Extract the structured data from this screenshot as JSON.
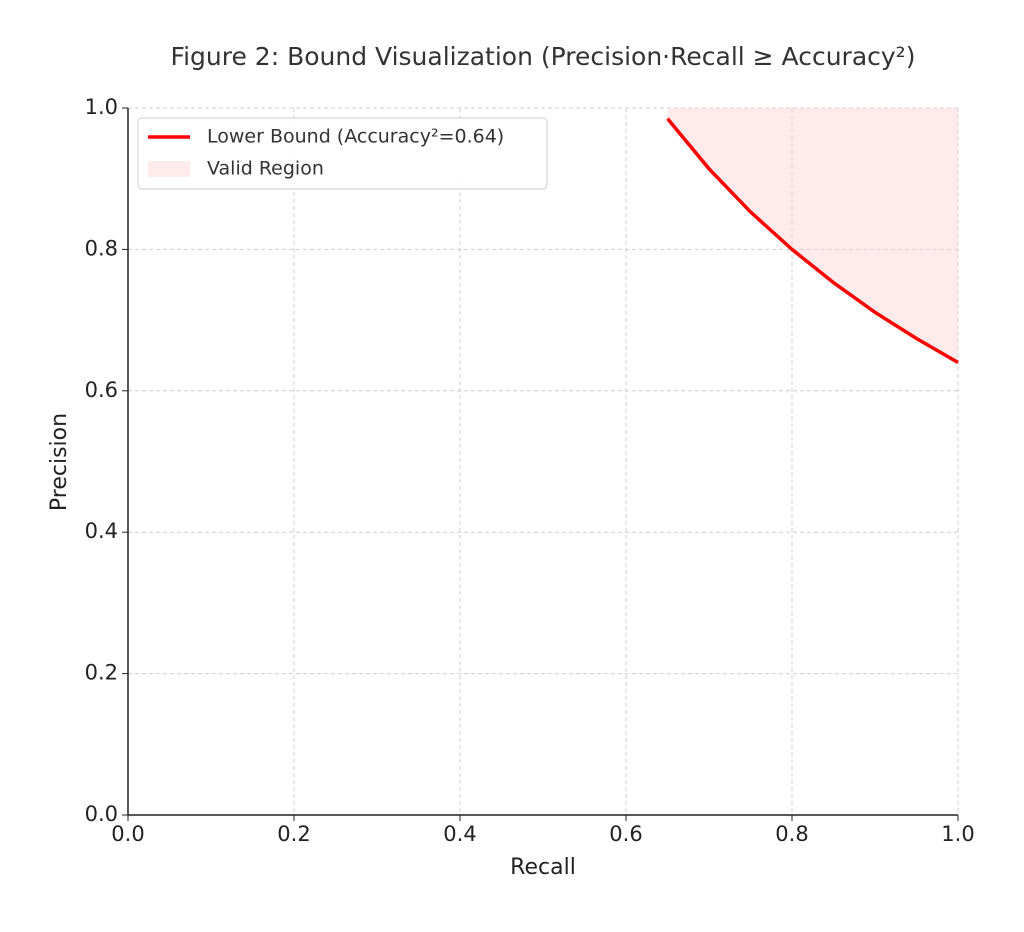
{
  "chart_data": {
    "type": "line",
    "title": "Figure 2: Bound Visualization (Precision·Recall ≥ Accuracy²)",
    "x_label": "Recall",
    "y_label": "Precision",
    "x": [
      0.65,
      0.7,
      0.75,
      0.8,
      0.85,
      0.9,
      0.95,
      1.0
    ],
    "series": [
      {
        "name": "Lower Bound (Accuracy²=0.64)",
        "color": "#ff0000",
        "type": "line",
        "values": [
          0.985,
          0.914,
          0.853,
          0.8,
          0.753,
          0.711,
          0.674,
          0.64
        ]
      },
      {
        "name": "Valid Region",
        "color": "#ffcccc",
        "type": "area",
        "lower": [
          0.985,
          0.914,
          0.853,
          0.8,
          0.753,
          0.711,
          0.674,
          0.64
        ],
        "upper": [
          1,
          1,
          1,
          1,
          1,
          1,
          1,
          1
        ]
      }
    ],
    "xlim": [
      0,
      1
    ],
    "ylim": [
      0,
      1
    ],
    "xticks": [
      {
        "value": 0,
        "label": "0.0"
      },
      0.2,
      0.4,
      0.6,
      0.8,
      {
        "value": 1,
        "label": "1.0"
      }
    ],
    "yticks": [
      {
        "value": 0,
        "label": "0.0"
      },
      0.2,
      0.4,
      0.6,
      0.8,
      {
        "value": 1,
        "label": "1.0"
      }
    ],
    "grid": true,
    "legend": "upper left"
  }
}
